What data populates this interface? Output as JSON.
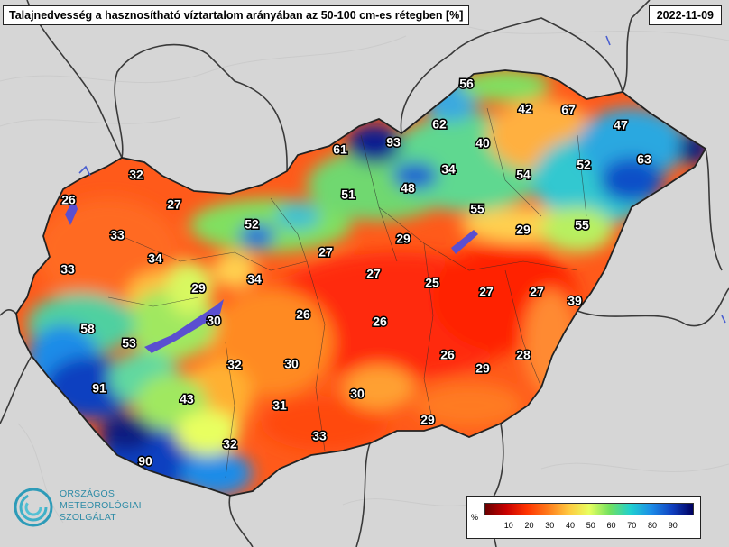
{
  "header": {
    "title": "Talajnedvesség a hasznosítható víztartalom arányában az 50-100 cm-es rétegben [%]",
    "date": "2022-11-09"
  },
  "logo": {
    "line1": "ORSZÁGOS",
    "line2": "METEOROLÓGIAI",
    "line3": "SZOLGÁLAT"
  },
  "legend": {
    "unit": "%",
    "ticks": [
      "10",
      "20",
      "30",
      "40",
      "50",
      "60",
      "70",
      "80",
      "90"
    ],
    "colors": [
      "#6b0000",
      "#c80000",
      "#ff3300",
      "#ff7a1a",
      "#ffc840",
      "#e8ff60",
      "#70e060",
      "#1fd0d0",
      "#1c8ce8",
      "#1040c0",
      "#000060"
    ]
  },
  "colors": {
    "background": "#d9d9d9",
    "outside_land": "#d4d4d4",
    "border": "#333333",
    "lake": "#5a4fd0",
    "label_text": "#ffffff",
    "label_outline": "#000000"
  },
  "stations": [
    {
      "value": "56",
      "label": "56"
    },
    {
      "value": "42",
      "label": "42"
    },
    {
      "value": "67",
      "label": "67"
    },
    {
      "value": "62",
      "label": "62"
    },
    {
      "value": "47",
      "label": "47"
    },
    {
      "value": "61",
      "label": "61"
    },
    {
      "value": "93",
      "label": "93"
    },
    {
      "value": "40",
      "label": "40"
    },
    {
      "value": "63",
      "label": "63"
    },
    {
      "value": "32",
      "label": "32"
    },
    {
      "value": "34",
      "label": "34"
    },
    {
      "value": "54",
      "label": "54"
    },
    {
      "value": "52",
      "label": "52"
    },
    {
      "value": "26",
      "label": "26"
    },
    {
      "value": "48",
      "label": "48"
    },
    {
      "value": "51",
      "label": "51"
    },
    {
      "value": "27",
      "label": "27"
    },
    {
      "value": "55",
      "label": "55"
    },
    {
      "value": "52",
      "label": "52"
    },
    {
      "value": "55",
      "label": "55"
    },
    {
      "value": "33",
      "label": "33"
    },
    {
      "value": "29",
      "label": "29"
    },
    {
      "value": "29",
      "label": "29"
    },
    {
      "value": "27",
      "label": "27"
    },
    {
      "value": "34",
      "label": "34"
    },
    {
      "value": "33",
      "label": "33"
    },
    {
      "value": "27",
      "label": "27"
    },
    {
      "value": "34",
      "label": "34"
    },
    {
      "value": "25",
      "label": "25"
    },
    {
      "value": "27",
      "label": "27"
    },
    {
      "value": "27",
      "label": "27"
    },
    {
      "value": "29",
      "label": "29"
    },
    {
      "value": "39",
      "label": "39"
    },
    {
      "value": "26",
      "label": "26"
    },
    {
      "value": "30",
      "label": "30"
    },
    {
      "value": "58",
      "label": "58"
    },
    {
      "value": "26",
      "label": "26"
    },
    {
      "value": "53",
      "label": "53"
    },
    {
      "value": "26",
      "label": "26"
    },
    {
      "value": "28",
      "label": "28"
    },
    {
      "value": "32",
      "label": "32"
    },
    {
      "value": "30",
      "label": "30"
    },
    {
      "value": "29",
      "label": "29"
    },
    {
      "value": "91",
      "label": "91"
    },
    {
      "value": "43",
      "label": "43"
    },
    {
      "value": "30",
      "label": "30"
    },
    {
      "value": "31",
      "label": "31"
    },
    {
      "value": "29",
      "label": "29"
    },
    {
      "value": "33",
      "label": "33"
    },
    {
      "value": "32",
      "label": "32"
    },
    {
      "value": "90",
      "label": "90"
    }
  ]
}
